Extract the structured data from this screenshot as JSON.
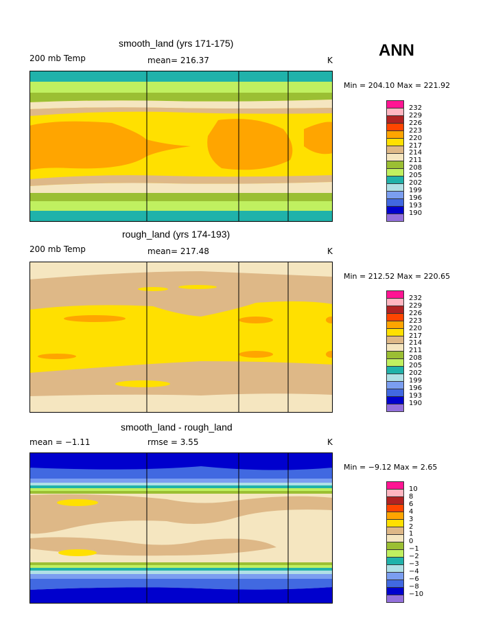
{
  "season": "ANN",
  "colors": [
    "#ff1493",
    "#ffb6c1",
    "#b22222",
    "#ff4500",
    "#ffa500",
    "#ffe000",
    "#deb887",
    "#f5e6c0",
    "#9bbf33",
    "#c0f060",
    "#20b2aa",
    "#b0e0e6",
    "#7b9ef0",
    "#4169e1",
    "#0000cd",
    "#9370db"
  ],
  "chart_data": [
    {
      "type": "heatmap",
      "title": "smooth_land (yrs 171-175)",
      "left_label": "200 mb Temp",
      "center_label": "mean=  216.37",
      "units": "K",
      "min_max": "Min = 204.10 Max = 221.92",
      "min": 204.1,
      "max": 221.92,
      "mean": 216.37,
      "levels": [
        "232",
        "229",
        "226",
        "223",
        "220",
        "217",
        "214",
        "211",
        "208",
        "205",
        "202",
        "199",
        "196",
        "193",
        "190"
      ]
    },
    {
      "type": "heatmap",
      "title": "rough_land (yrs 174-193)",
      "left_label": "200 mb Temp",
      "center_label": "mean=  217.48",
      "units": "K",
      "min_max": "Min = 212.52 Max = 220.65",
      "min": 212.52,
      "max": 220.65,
      "mean": 217.48,
      "levels": [
        "232",
        "229",
        "226",
        "223",
        "220",
        "217",
        "214",
        "211",
        "208",
        "205",
        "202",
        "199",
        "196",
        "193",
        "190"
      ]
    },
    {
      "type": "heatmap",
      "title": "smooth_land - rough_land",
      "left_label": "mean =   −1.11",
      "center_label": "rmse =    3.55",
      "units": "K",
      "min_max": "Min =   −9.12 Max =    2.65",
      "min": -9.12,
      "max": 2.65,
      "mean": -1.11,
      "rmse": 3.55,
      "levels": [
        "10",
        "8",
        "6",
        "4",
        "3",
        "2",
        "1",
        "0",
        "−1",
        "−2",
        "−3",
        "−4",
        "−6",
        "−8",
        "−10"
      ]
    }
  ]
}
